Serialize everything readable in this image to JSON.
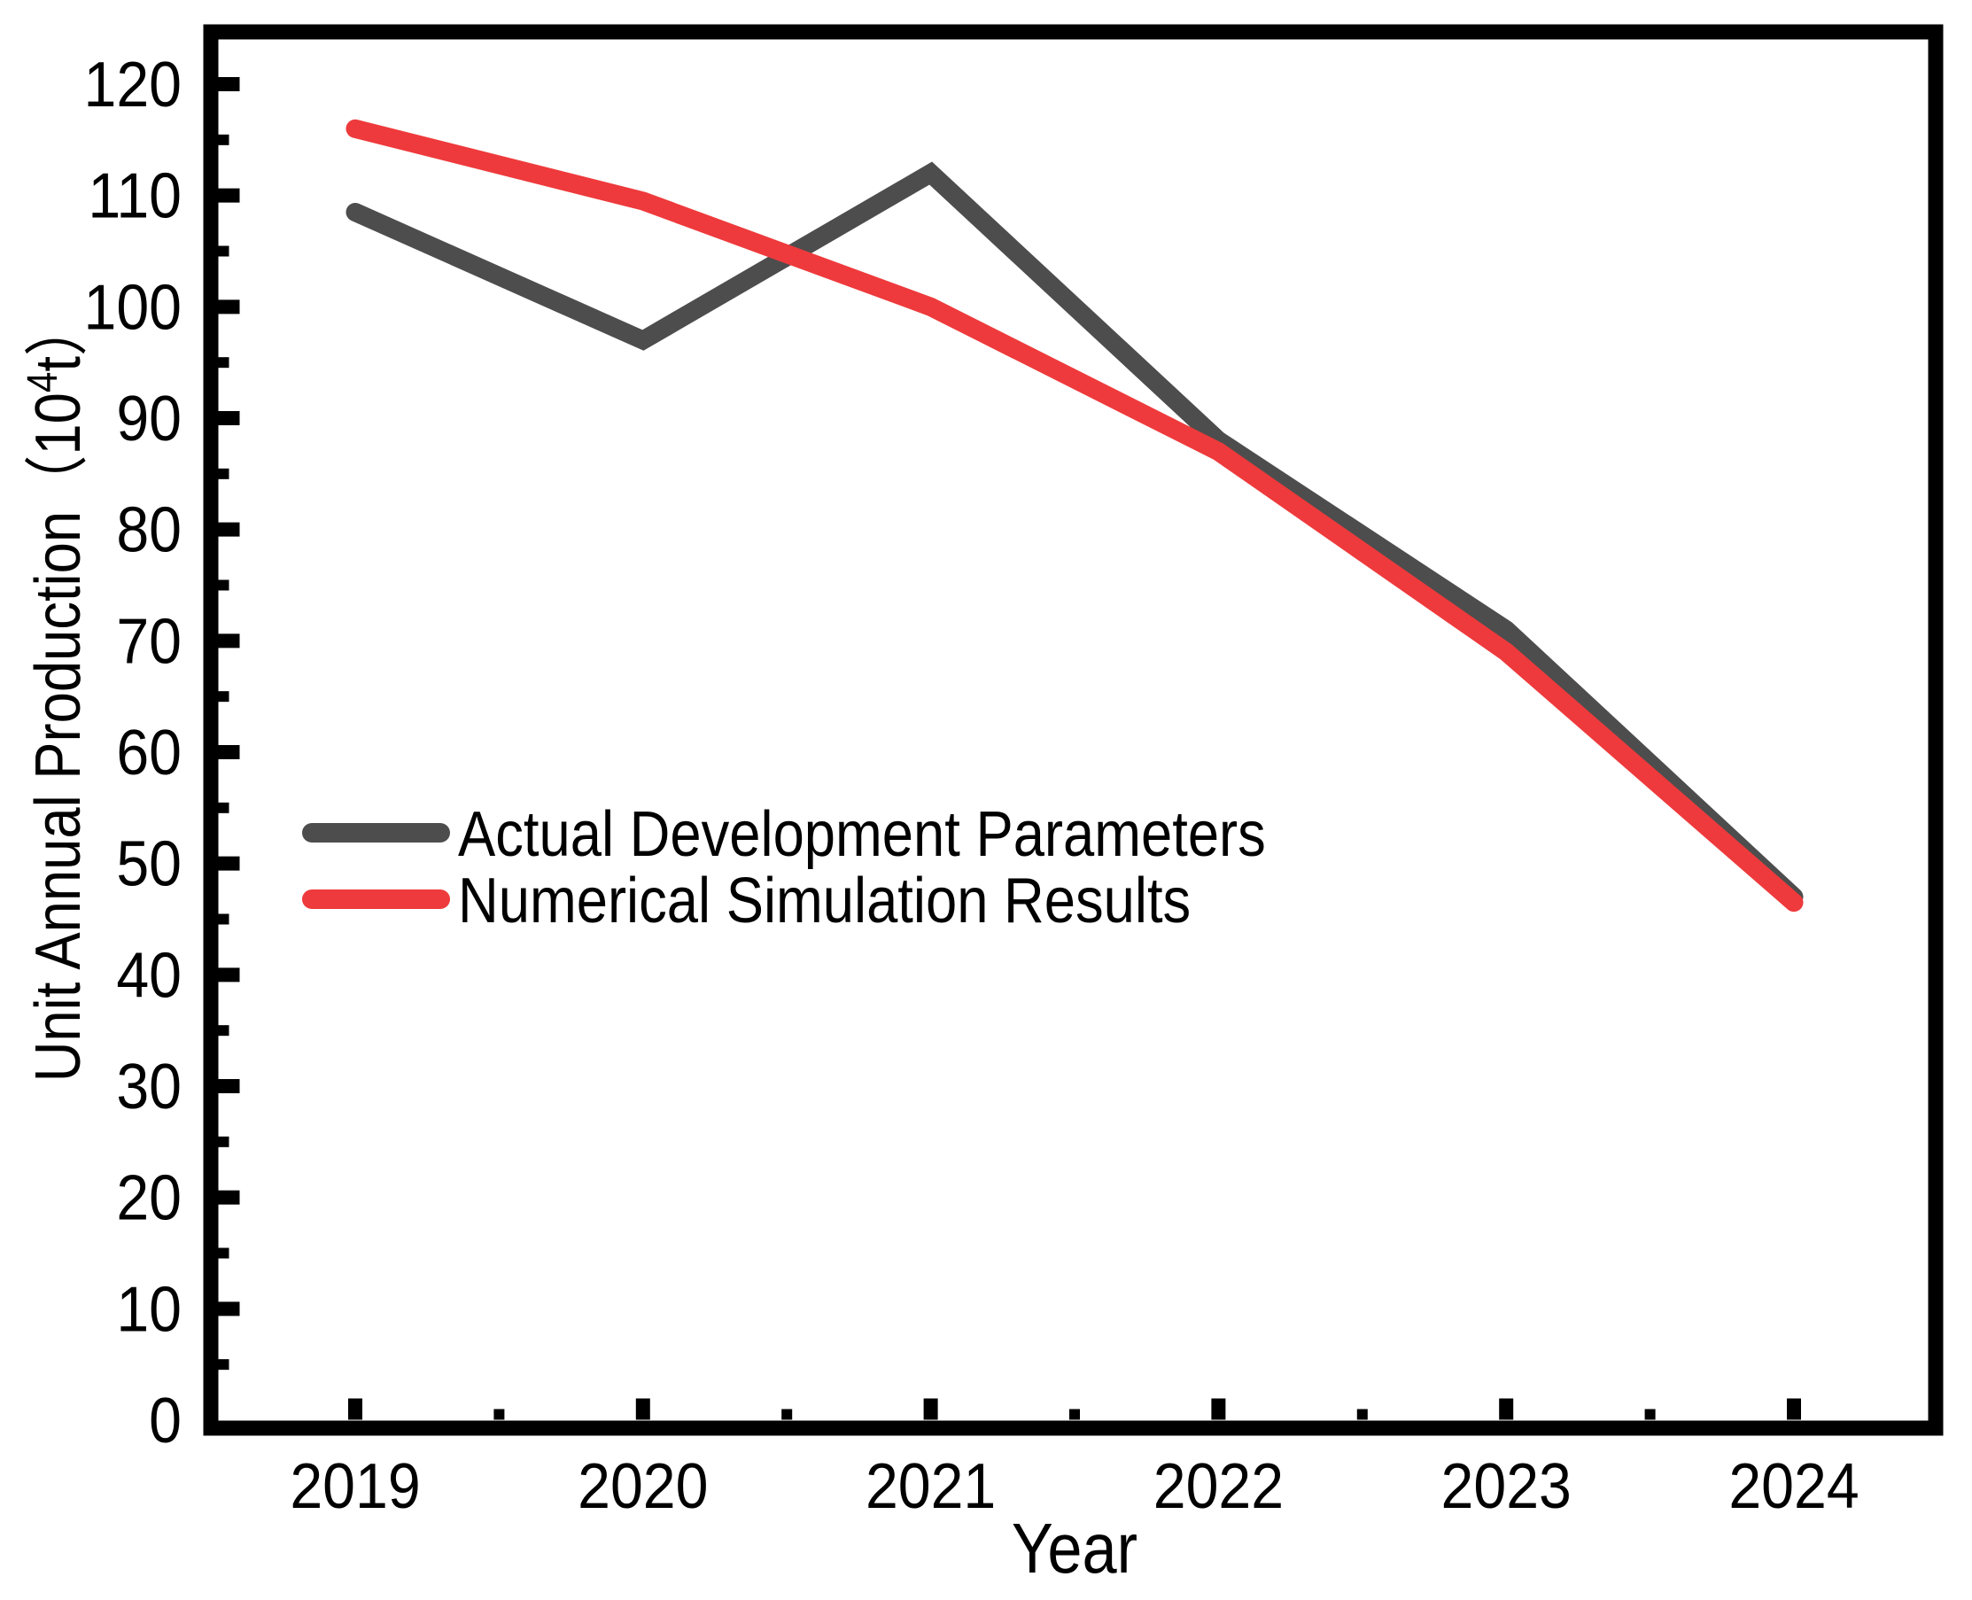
{
  "chart_data": {
    "type": "line",
    "title": "",
    "xlabel": "Year",
    "ylabel": "Unit Annual Production（10⁴t）",
    "ylabel_parts": {
      "pre": "Unit Annual Production（10",
      "sup": "4",
      "post": "t）"
    },
    "categories": [
      "2019",
      "2020",
      "2021",
      "2022",
      "2023",
      "2024"
    ],
    "series": [
      {
        "name": "Actual Development Parameters",
        "color": "#4d4d4d",
        "values": [
          108.5,
          97,
          112,
          88,
          71,
          47
        ]
      },
      {
        "name": "Numerical Simulation Results",
        "color": "#ee3a3c",
        "values": [
          116,
          109.5,
          100,
          87,
          69,
          46.5
        ]
      }
    ],
    "ylim": [
      0,
      120
    ],
    "ytick_step": 10,
    "yticks": [
      0,
      10,
      20,
      30,
      40,
      50,
      60,
      70,
      80,
      90,
      100,
      110,
      120
    ],
    "y_minor_ticks": [
      5,
      15,
      25,
      35,
      45,
      55,
      65,
      75,
      85,
      95,
      105,
      115
    ],
    "x_minor_positions": [
      0.5,
      1.5,
      2.5,
      3.5,
      4.5
    ],
    "xlim": [
      "2018.5",
      "2024.5"
    ],
    "grid": false,
    "tick_direction": "in",
    "legend_position": "inside-center-left",
    "axis_color": "#000000",
    "background_color": "#ffffff"
  }
}
